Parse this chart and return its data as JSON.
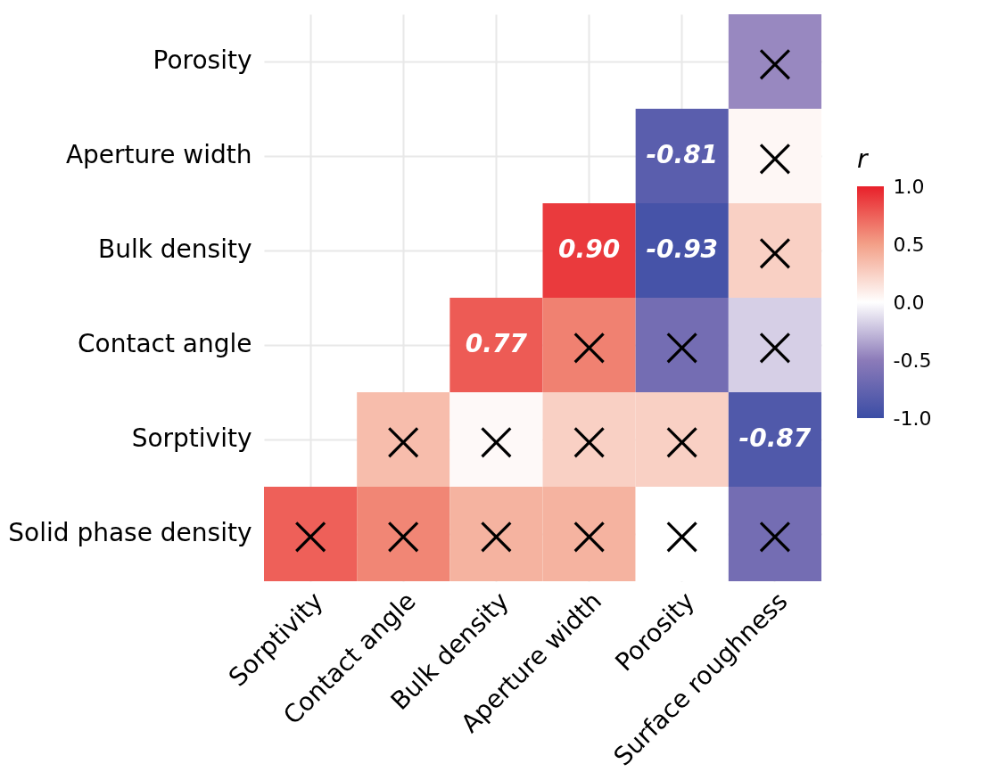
{
  "chart_data": {
    "type": "heatmap",
    "categories": [
      "Sorptivity",
      "Contact angle",
      "Bulk density",
      "Aperture width",
      "Porosity",
      "Surface roughness"
    ],
    "y_categories": [
      "Porosity",
      "Aperture width",
      "Bulk density",
      "Contact angle",
      "Sorptivity",
      "Solid phase density"
    ],
    "cells": [
      [
        null,
        null,
        null,
        null,
        null,
        -0.45
      ],
      [
        null,
        null,
        null,
        null,
        -0.81,
        0.04
      ],
      [
        null,
        null,
        null,
        0.9,
        -0.93,
        0.25
      ],
      [
        null,
        null,
        0.77,
        0.62,
        -0.65,
        -0.18
      ],
      [
        null,
        0.35,
        0.03,
        0.25,
        0.25,
        -0.87
      ],
      [
        0.75,
        0.6,
        0.4,
        0.4,
        0.0,
        -0.65
      ]
    ],
    "cell_labels": [
      [
        null,
        null,
        null,
        null,
        null,
        "×"
      ],
      [
        null,
        null,
        null,
        null,
        "-0.81",
        "×"
      ],
      [
        null,
        null,
        null,
        "0.90",
        "-0.93",
        "×"
      ],
      [
        null,
        null,
        "0.77",
        "×",
        "×",
        "×"
      ],
      [
        null,
        "×",
        "×",
        "×",
        "×",
        "-0.87"
      ],
      [
        "×",
        "×",
        "×",
        "×",
        "×",
        "×"
      ]
    ],
    "clabel": "r",
    "clim": [
      -1,
      1
    ],
    "cticks": [
      {
        "value": 1,
        "label": "1.0"
      },
      {
        "value": 0.5,
        "label": "0.5"
      },
      {
        "value": 0,
        "label": "0.0"
      },
      {
        "value": -0.5,
        "label": "-0.5"
      },
      {
        "value": -1,
        "label": "-1.0"
      }
    ],
    "grid": true
  }
}
